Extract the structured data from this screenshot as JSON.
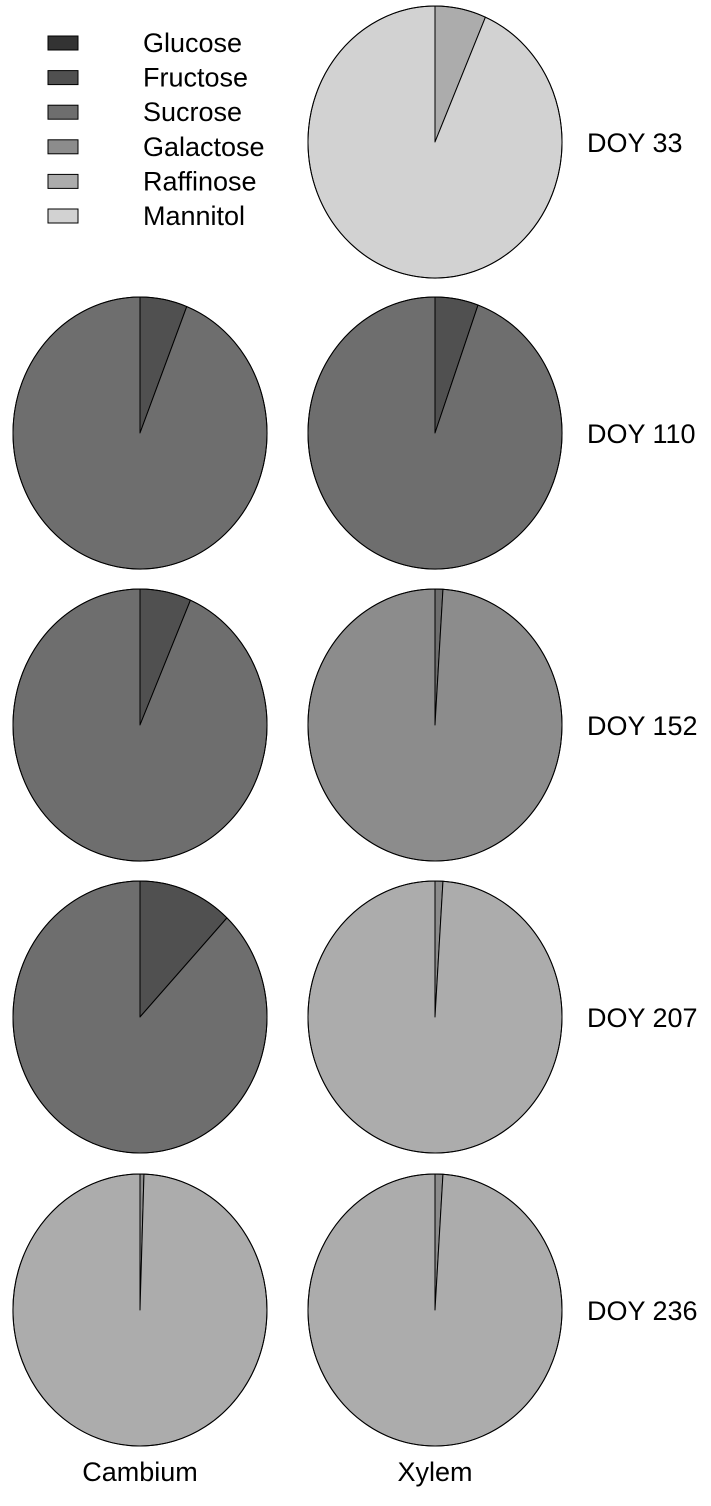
{
  "chart_data": {
    "type": "pie",
    "title": "",
    "legend": {
      "placement": "top-left",
      "entries": [
        {
          "name": "Glucose",
          "color": "#333333"
        },
        {
          "name": "Fructose",
          "color": "#505050"
        },
        {
          "name": "Sucrose",
          "color": "#6e6e6e"
        },
        {
          "name": "Galactose",
          "color": "#8c8c8c"
        },
        {
          "name": "Raffinose",
          "color": "#acacac"
        },
        {
          "name": "Mannitol",
          "color": "#d2d2d2"
        }
      ]
    },
    "columns": [
      "Cambium",
      "Xylem"
    ],
    "rows": [
      "DOY 33",
      "DOY 110",
      "DOY 152",
      "DOY 207",
      "DOY 236"
    ],
    "pies": [
      {
        "row": 0,
        "column": 1,
        "slices": [
          {
            "category": "Raffinose",
            "value": 6.5
          },
          {
            "category": "Mannitol",
            "value": 93.5
          }
        ]
      },
      {
        "row": 1,
        "column": 0,
        "slices": [
          {
            "category": "Fructose",
            "value": 6
          },
          {
            "category": "Sucrose",
            "value": 94
          }
        ]
      },
      {
        "row": 1,
        "column": 1,
        "slices": [
          {
            "category": "Fructose",
            "value": 5.5
          },
          {
            "category": "Sucrose",
            "value": 94.5
          }
        ]
      },
      {
        "row": 2,
        "column": 0,
        "slices": [
          {
            "category": "Fructose",
            "value": 6.5
          },
          {
            "category": "Sucrose",
            "value": 93.5
          }
        ]
      },
      {
        "row": 2,
        "column": 1,
        "slices": [
          {
            "category": "Sucrose",
            "value": 1
          },
          {
            "category": "Galactose",
            "value": 99
          }
        ]
      },
      {
        "row": 3,
        "column": 0,
        "slices": [
          {
            "category": "Fructose",
            "value": 12
          },
          {
            "category": "Sucrose",
            "value": 88
          }
        ]
      },
      {
        "row": 3,
        "column": 1,
        "slices": [
          {
            "category": "Galactose",
            "value": 1
          },
          {
            "category": "Raffinose",
            "value": 99
          }
        ]
      },
      {
        "row": 4,
        "column": 0,
        "slices": [
          {
            "category": "Galactose",
            "value": 0.5
          },
          {
            "category": "Raffinose",
            "value": 99.5
          }
        ]
      },
      {
        "row": 4,
        "column": 1,
        "slices": [
          {
            "category": "Galactose",
            "value": 1
          },
          {
            "category": "Raffinose",
            "value": 99
          }
        ]
      }
    ]
  }
}
